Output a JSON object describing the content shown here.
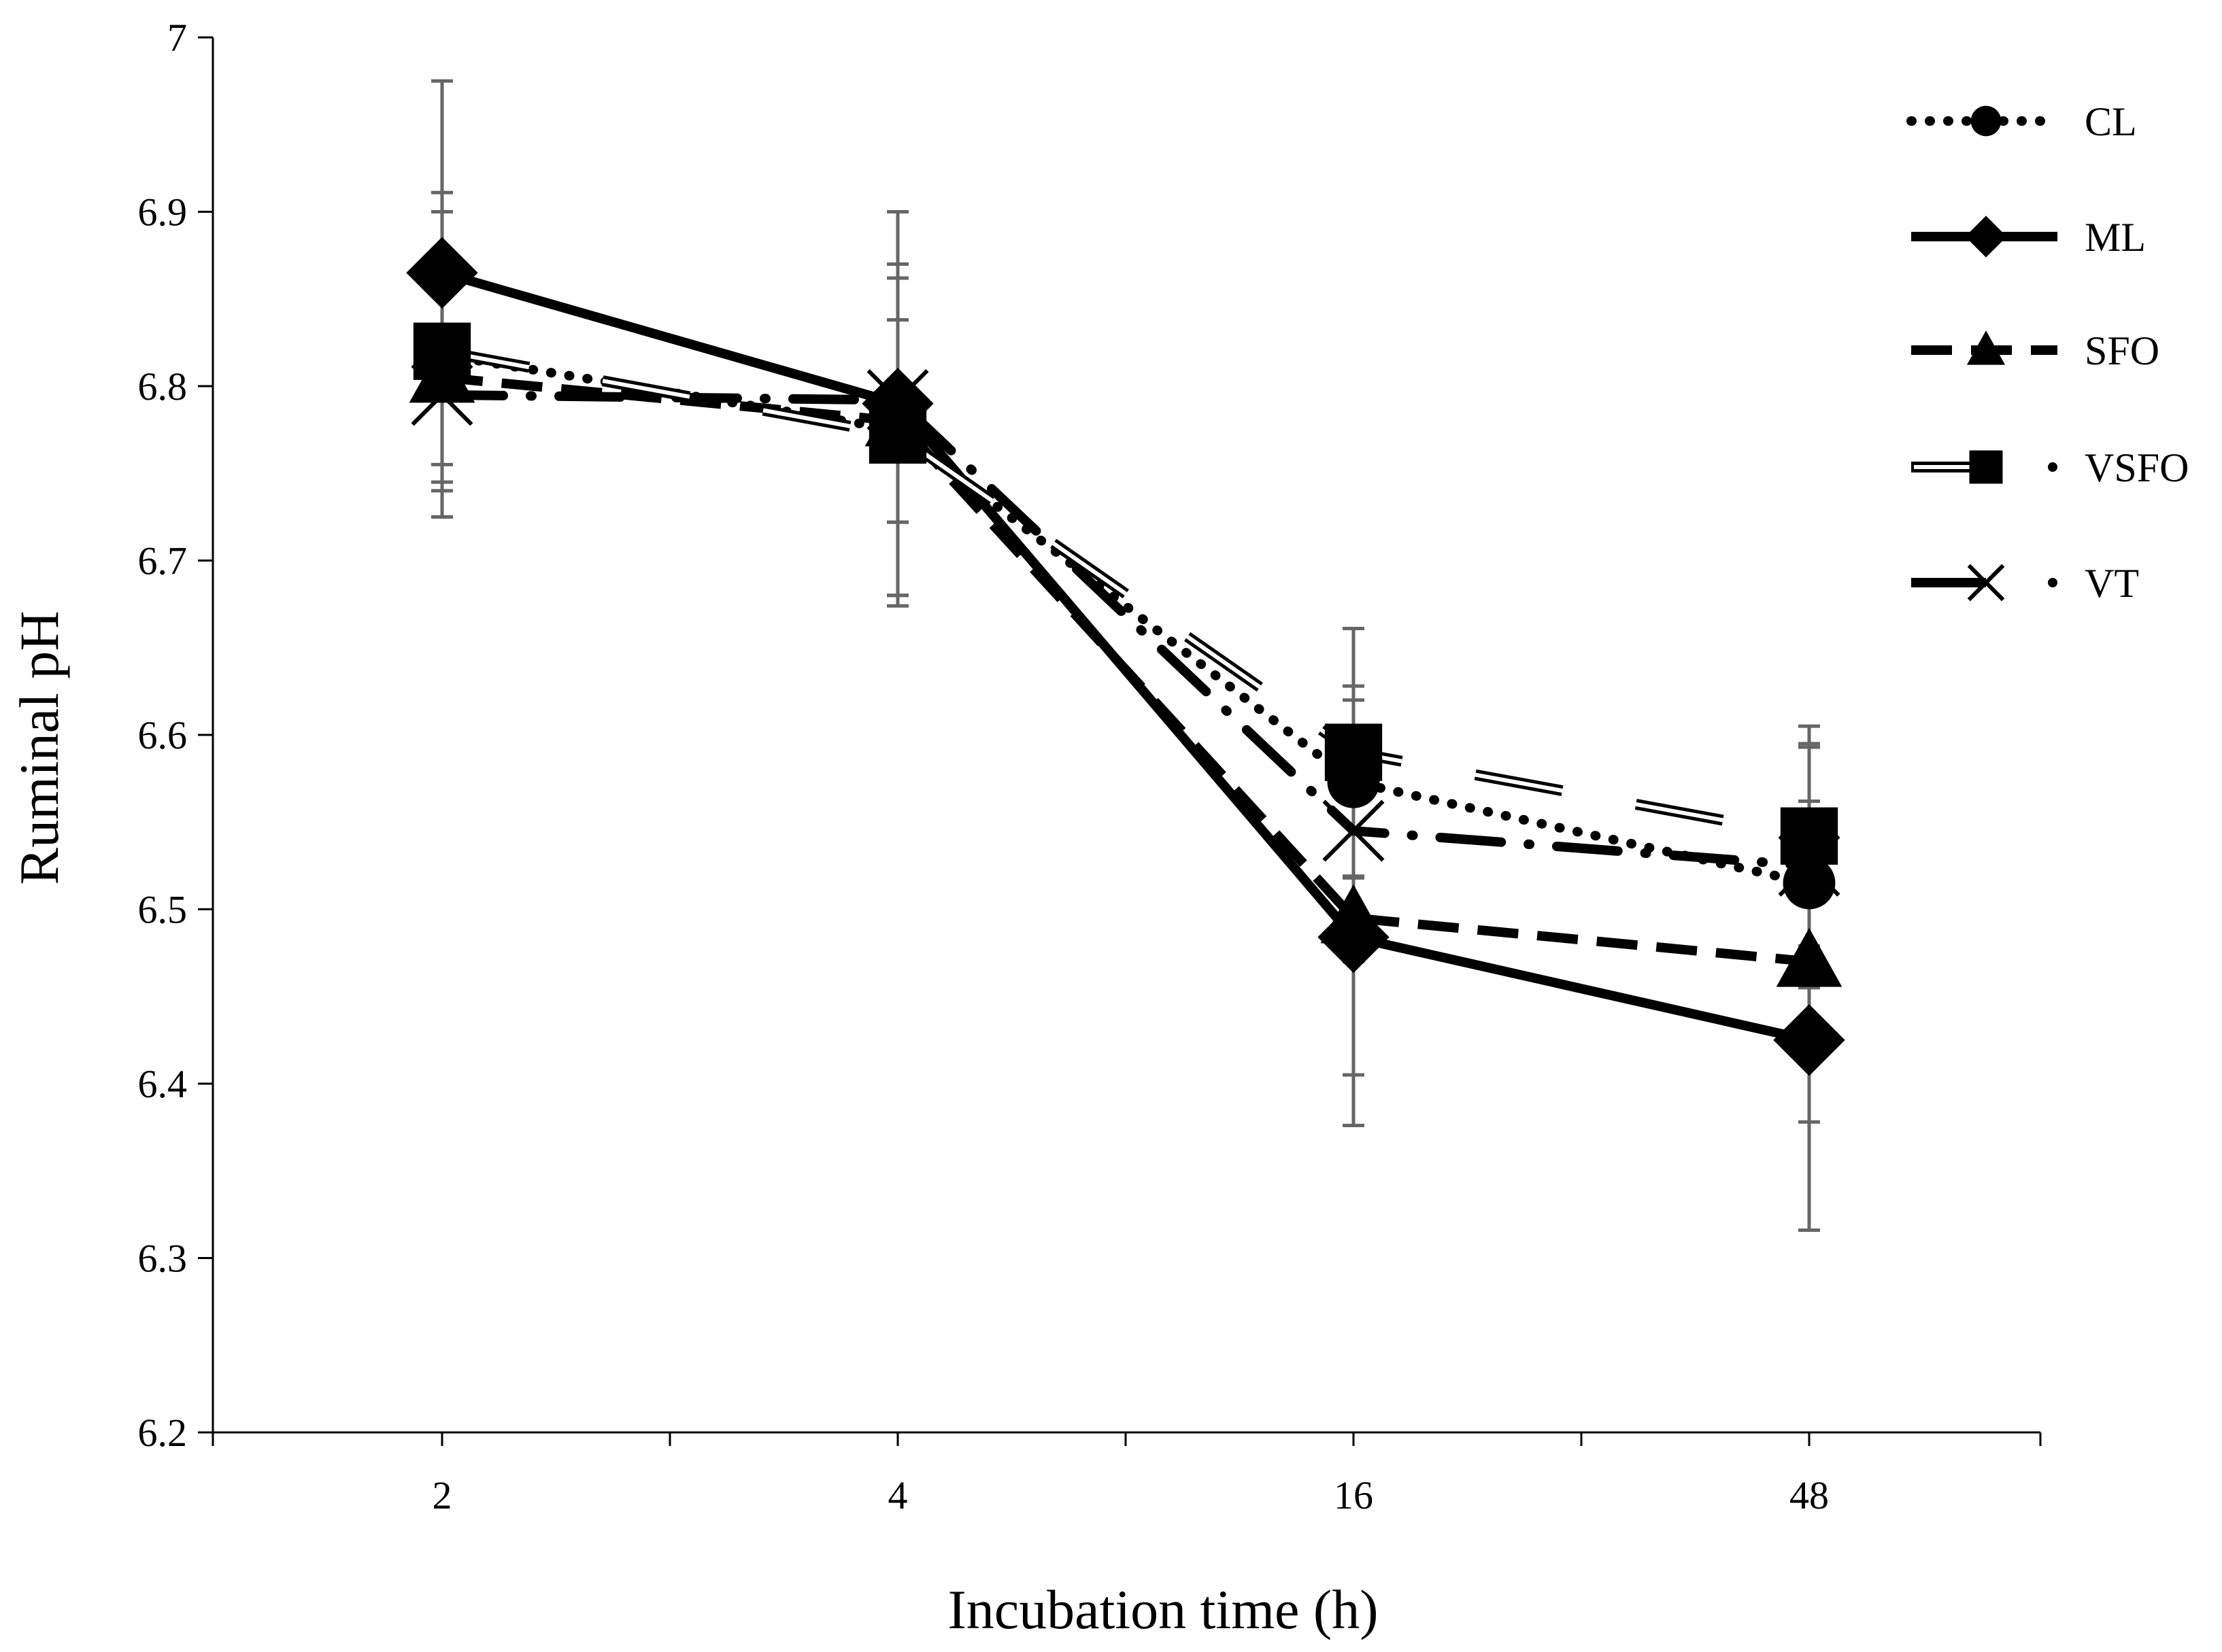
{
  "chart_data": {
    "type": "line",
    "title": "",
    "xlabel": "Incubation time (h)",
    "ylabel": "Ruminal pH",
    "categories": [
      "2",
      "4",
      "16",
      "48"
    ],
    "ylim": [
      6.2,
      7.0
    ],
    "yticks": [
      "6.2",
      "6.3",
      "6.4",
      "6.5",
      "6.6",
      "6.7",
      "6.8",
      "6.9",
      "7"
    ],
    "grid": false,
    "legend_position": "top-right",
    "series": [
      {
        "name": "CL",
        "style": "dotted",
        "marker": "circle",
        "values": [
          6.818,
          6.775,
          6.573,
          6.515
        ],
        "error": [
          0.093,
          0.095,
          0.055,
          0.078
        ]
      },
      {
        "name": "ML",
        "style": "solid",
        "marker": "diamond",
        "values": [
          6.865,
          6.79,
          6.484,
          6.425
        ],
        "error": [
          0.11,
          0.11,
          0.108,
          0.109
        ]
      },
      {
        "name": "SFO",
        "style": "dashed",
        "marker": "triangle",
        "values": [
          6.805,
          6.78,
          6.495,
          6.47
        ],
        "error": [
          0.06,
          0.058,
          0.09,
          0.092
        ]
      },
      {
        "name": "VSFO",
        "style": "double-dash",
        "marker": "square",
        "values": [
          6.82,
          6.772,
          6.59,
          6.542
        ],
        "error": [
          0.08,
          0.098,
          0.071,
          0.063
        ]
      },
      {
        "name": "VT",
        "style": "long-dash-dot",
        "marker": "x",
        "values": [
          6.795,
          6.792,
          6.545,
          6.525
        ],
        "error": [
          0.07,
          0.07,
          0.075,
          0.07
        ]
      }
    ]
  }
}
